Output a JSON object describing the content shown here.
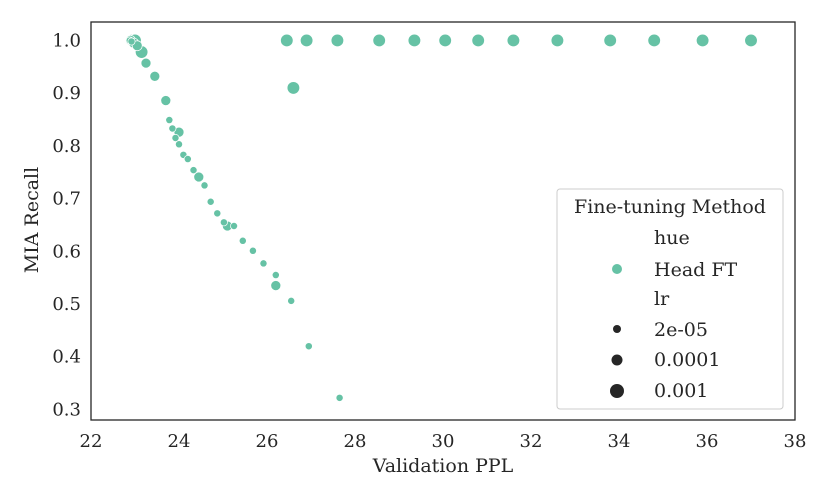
{
  "chart_data": {
    "type": "scatter",
    "xlabel": "Validation PPL",
    "ylabel": "MIA Recall",
    "xlim": [
      22,
      38
    ],
    "ylim": [
      0.28,
      1.035
    ],
    "xticks": [
      22,
      24,
      26,
      28,
      30,
      32,
      34,
      36,
      38
    ],
    "yticks": [
      0.3,
      0.4,
      0.5,
      0.6,
      0.7,
      0.8,
      0.9,
      1.0
    ],
    "grid": false,
    "color": "#66c2a5",
    "legend": {
      "title": "Fine-tuning Method",
      "placement": "lower-right",
      "hue_title": "hue",
      "hue_entries": [
        "Head FT"
      ],
      "size_title": "lr",
      "size_entries": [
        "2e-05",
        "0.0001",
        "0.001"
      ]
    },
    "series": [
      {
        "lr": "0.001",
        "points": [
          {
            "x": 22.95,
            "y": 1.0
          },
          {
            "x": 23.0,
            "y": 1.0
          },
          {
            "x": 23.15,
            "y": 0.978
          },
          {
            "x": 26.45,
            "y": 1.0
          },
          {
            "x": 26.6,
            "y": 0.91
          },
          {
            "x": 26.9,
            "y": 1.0
          },
          {
            "x": 27.6,
            "y": 1.0
          },
          {
            "x": 28.55,
            "y": 1.0
          },
          {
            "x": 29.35,
            "y": 1.0
          },
          {
            "x": 30.05,
            "y": 1.0
          },
          {
            "x": 30.8,
            "y": 1.0
          },
          {
            "x": 31.6,
            "y": 1.0
          },
          {
            "x": 32.6,
            "y": 1.0
          },
          {
            "x": 33.8,
            "y": 1.0
          },
          {
            "x": 34.8,
            "y": 1.0
          },
          {
            "x": 35.9,
            "y": 1.0
          },
          {
            "x": 37.0,
            "y": 1.0
          }
        ]
      },
      {
        "lr": "0.0001",
        "points": [
          {
            "x": 22.9,
            "y": 1.0
          },
          {
            "x": 22.97,
            "y": 0.995
          },
          {
            "x": 23.05,
            "y": 0.99
          },
          {
            "x": 23.25,
            "y": 0.957
          },
          {
            "x": 23.45,
            "y": 0.932
          },
          {
            "x": 23.7,
            "y": 0.886
          },
          {
            "x": 24.0,
            "y": 0.826
          },
          {
            "x": 24.45,
            "y": 0.741
          },
          {
            "x": 25.1,
            "y": 0.648
          },
          {
            "x": 26.2,
            "y": 0.535
          }
        ]
      },
      {
        "lr": "2e-05",
        "points": [
          {
            "x": 22.88,
            "y": 1.0
          },
          {
            "x": 22.92,
            "y": 0.998
          },
          {
            "x": 23.78,
            "y": 0.849
          },
          {
            "x": 23.85,
            "y": 0.833
          },
          {
            "x": 23.92,
            "y": 0.815
          },
          {
            "x": 24.0,
            "y": 0.803
          },
          {
            "x": 24.1,
            "y": 0.783
          },
          {
            "x": 24.2,
            "y": 0.775
          },
          {
            "x": 24.33,
            "y": 0.754
          },
          {
            "x": 24.58,
            "y": 0.725
          },
          {
            "x": 24.72,
            "y": 0.694
          },
          {
            "x": 24.87,
            "y": 0.672
          },
          {
            "x": 25.02,
            "y": 0.655
          },
          {
            "x": 25.25,
            "y": 0.648
          },
          {
            "x": 25.45,
            "y": 0.62
          },
          {
            "x": 25.68,
            "y": 0.601
          },
          {
            "x": 25.92,
            "y": 0.577
          },
          {
            "x": 26.2,
            "y": 0.555
          },
          {
            "x": 26.55,
            "y": 0.506
          },
          {
            "x": 26.95,
            "y": 0.42
          },
          {
            "x": 27.65,
            "y": 0.322
          }
        ]
      }
    ]
  }
}
